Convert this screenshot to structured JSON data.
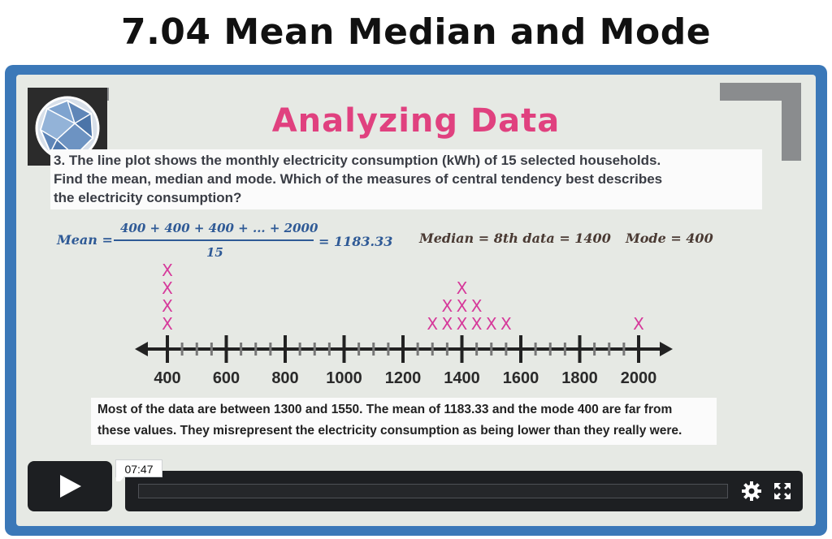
{
  "page": {
    "title": "7.04 Mean Median and Mode"
  },
  "slide": {
    "title": "Analyzing Data",
    "question": {
      "line1": "3. The line plot shows the monthly electricity consumption (kWh) of 15 selected households.",
      "line2": "Find the mean, median and mode. Which of the measures of central tendency best describes",
      "line3": "the electricity consumption?"
    },
    "mean": {
      "label": "Mean =",
      "numerator": "400 + 400 + 400 + ... + 2000",
      "denominator": "15",
      "result": "= 1183.33"
    },
    "median": "Median = 8th data = 1400",
    "mode": "Mode = 400",
    "explanation": {
      "line1": "Most of the data are between 1300 and 1550. The mean of 1183.33 and the mode 400 are far from",
      "line2": "these values. They misrepresent the electricity consumption as being lower than they really were."
    }
  },
  "chart_data": {
    "type": "line-plot",
    "title": "",
    "mark": "X",
    "axis_min": 400,
    "axis_max": 2000,
    "minor_step": 50,
    "tick_labels": [
      "400",
      "600",
      "800",
      "1000",
      "1200",
      "1400",
      "1600",
      "1800",
      "2000"
    ],
    "points": [
      {
        "value": 400,
        "count": 4
      },
      {
        "value": 1300,
        "count": 1
      },
      {
        "value": 1350,
        "count": 2
      },
      {
        "value": 1400,
        "count": 3
      },
      {
        "value": 1450,
        "count": 2
      },
      {
        "value": 1500,
        "count": 1
      },
      {
        "value": 1550,
        "count": 1
      },
      {
        "value": 2000,
        "count": 1
      }
    ],
    "colors": {
      "axis": "#222222",
      "mark": "#d6399a"
    }
  },
  "player": {
    "time": "07:47",
    "progress": 0,
    "play_icon": "play-icon",
    "settings_icon": "gear-icon",
    "fullscreen_icon": "fullscreen-icon"
  },
  "colors": {
    "frame": "#3b78b8",
    "slide_title": "#e0417f",
    "formula_blue": "#2f5a96"
  }
}
